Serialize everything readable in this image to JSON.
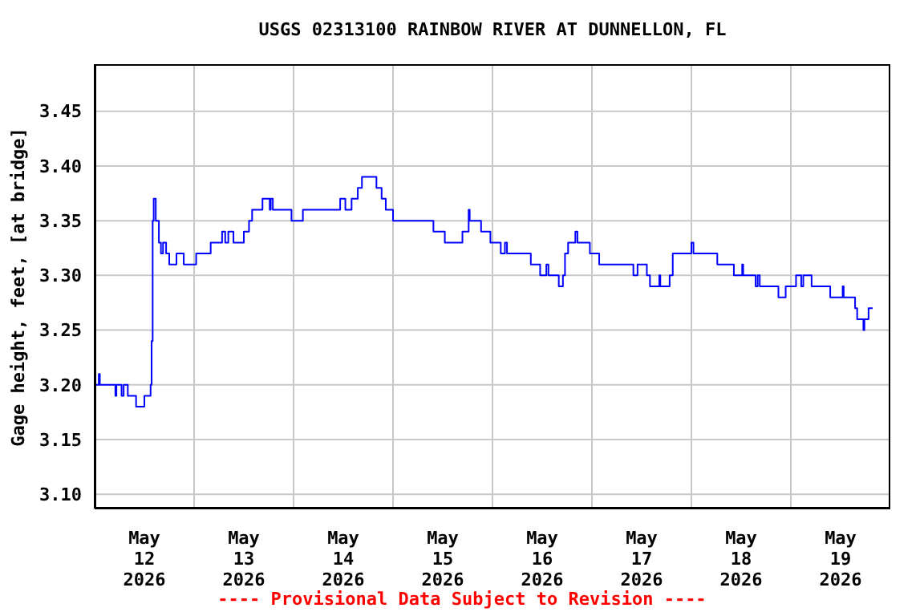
{
  "chart_data": {
    "type": "step",
    "title": "USGS 02313100 RAINBOW RIVER AT DUNNELLON, FL",
    "ylabel": "Gage height, feet, [at bridge]",
    "annotations": [
      "---- Provisional Data Subject to Revision ----"
    ],
    "x": [
      "2026-05-12T00:00",
      "2026-05-12T01:00",
      "2026-05-12T01:15",
      "2026-05-12T05:00",
      "2026-05-12T05:15",
      "2026-05-12T06:30",
      "2026-05-12T07:00",
      "2026-05-12T08:00",
      "2026-05-12T10:00",
      "2026-05-12T12:00",
      "2026-05-12T13:30",
      "2026-05-12T13:45",
      "2026-05-12T14:00",
      "2026-05-12T14:15",
      "2026-05-12T14:45",
      "2026-05-12T15:30",
      "2026-05-12T16:00",
      "2026-05-12T16:30",
      "2026-05-12T17:15",
      "2026-05-12T18:00",
      "2026-05-12T19:45",
      "2026-05-12T21:30",
      "2026-05-13T00:30",
      "2026-05-13T04:00",
      "2026-05-13T06:45",
      "2026-05-13T07:30",
      "2026-05-13T08:15",
      "2026-05-13T09:30",
      "2026-05-13T12:00",
      "2026-05-13T13:15",
      "2026-05-13T14:00",
      "2026-05-13T16:30",
      "2026-05-13T18:15",
      "2026-05-13T18:30",
      "2026-05-13T19:00",
      "2026-05-13T23:30",
      "2026-05-14T02:15",
      "2026-05-14T11:15",
      "2026-05-14T12:30",
      "2026-05-14T14:00",
      "2026-05-14T15:30",
      "2026-05-14T16:30",
      "2026-05-14T20:00",
      "2026-05-14T21:15",
      "2026-05-14T22:15",
      "2026-05-15T00:00",
      "2026-05-15T09:45",
      "2026-05-15T12:30",
      "2026-05-15T16:45",
      "2026-05-15T18:15",
      "2026-05-15T18:30",
      "2026-05-15T21:15",
      "2026-05-15T23:30",
      "2026-05-16T02:00",
      "2026-05-16T03:00",
      "2026-05-16T03:30",
      "2026-05-16T09:15",
      "2026-05-16T11:30",
      "2026-05-16T13:00",
      "2026-05-16T13:30",
      "2026-05-16T16:00",
      "2026-05-16T17:00",
      "2026-05-16T17:30",
      "2026-05-16T18:15",
      "2026-05-16T20:00",
      "2026-05-16T20:30",
      "2026-05-16T23:30",
      "2026-05-17T01:45",
      "2026-05-17T10:00",
      "2026-05-17T11:00",
      "2026-05-17T13:15",
      "2026-05-17T14:00",
      "2026-05-17T16:15",
      "2026-05-17T16:30",
      "2026-05-17T18:45",
      "2026-05-17T19:30",
      "2026-05-18T00:00",
      "2026-05-18T00:30",
      "2026-05-18T06:15",
      "2026-05-18T10:15",
      "2026-05-18T12:15",
      "2026-05-18T12:30",
      "2026-05-18T15:30",
      "2026-05-18T16:00",
      "2026-05-18T16:30",
      "2026-05-18T21:00",
      "2026-05-18T22:45",
      "2026-05-19T01:15",
      "2026-05-19T02:30",
      "2026-05-19T03:00",
      "2026-05-19T05:00",
      "2026-05-19T09:30",
      "2026-05-19T12:30",
      "2026-05-19T12:45",
      "2026-05-19T15:30",
      "2026-05-19T16:00",
      "2026-05-19T17:30",
      "2026-05-19T17:45",
      "2026-05-19T18:45",
      "2026-05-19T19:45"
    ],
    "series": [
      {
        "color": "#0000ff",
        "values": [
          3.2,
          3.21,
          3.2,
          3.19,
          3.2,
          3.19,
          3.2,
          3.19,
          3.18,
          3.19,
          3.2,
          3.24,
          3.35,
          3.37,
          3.35,
          3.33,
          3.32,
          3.33,
          3.32,
          3.31,
          3.32,
          3.31,
          3.32,
          3.33,
          3.34,
          3.33,
          3.34,
          3.33,
          3.34,
          3.35,
          3.36,
          3.37,
          3.36,
          3.37,
          3.36,
          3.35,
          3.36,
          3.37,
          3.36,
          3.37,
          3.38,
          3.39,
          3.38,
          3.37,
          3.36,
          3.35,
          3.34,
          3.33,
          3.34,
          3.36,
          3.35,
          3.34,
          3.33,
          3.32,
          3.33,
          3.32,
          3.31,
          3.3,
          3.31,
          3.3,
          3.29,
          3.3,
          3.32,
          3.33,
          3.34,
          3.33,
          3.32,
          3.31,
          3.3,
          3.31,
          3.3,
          3.29,
          3.3,
          3.29,
          3.3,
          3.32,
          3.33,
          3.32,
          3.31,
          3.3,
          3.31,
          3.3,
          3.29,
          3.3,
          3.29,
          3.28,
          3.29,
          3.3,
          3.29,
          3.3,
          3.29,
          3.28,
          3.29,
          3.28,
          3.27,
          3.26,
          3.25,
          3.26,
          3.27,
          3.27
        ]
      }
    ],
    "xlim": [
      "2026-05-12T00:00",
      "2026-05-20T00:00"
    ],
    "xticks": [
      {
        "value": "2026-05-12T12:00",
        "label": "May 12 2026"
      },
      {
        "value": "2026-05-13T12:00",
        "label": "May 13 2026"
      },
      {
        "value": "2026-05-14T12:00",
        "label": "May 14 2026"
      },
      {
        "value": "2026-05-15T12:00",
        "label": "May 15 2026"
      },
      {
        "value": "2026-05-16T12:00",
        "label": "May 16 2026"
      },
      {
        "value": "2026-05-17T12:00",
        "label": "May 17 2026"
      },
      {
        "value": "2026-05-18T12:00",
        "label": "May 18 2026"
      },
      {
        "value": "2026-05-19T12:00",
        "label": "May 19 2026"
      },
      {
        "value": "2026-05-13T00:00",
        "label": null
      },
      {
        "value": "2026-05-14T00:00",
        "label": null
      },
      {
        "value": "2026-05-15T00:00",
        "label": null
      },
      {
        "value": "2026-05-16T00:00",
        "label": null
      },
      {
        "value": "2026-05-17T00:00",
        "label": null
      },
      {
        "value": "2026-05-18T00:00",
        "label": null
      },
      {
        "value": "2026-05-19T00:00",
        "label": null
      }
    ],
    "ylim": [
      3.087,
      3.493
    ],
    "yticks": [
      {
        "value": 3.1,
        "label": "3.10"
      },
      {
        "value": 3.15,
        "label": "3.15"
      },
      {
        "value": 3.2,
        "label": "3.20"
      },
      {
        "value": 3.25,
        "label": "3.25"
      },
      {
        "value": 3.3,
        "label": "3.30"
      },
      {
        "value": 3.35,
        "label": "3.35"
      },
      {
        "value": 3.4,
        "label": "3.40"
      },
      {
        "value": 3.45,
        "label": "3.45"
      }
    ],
    "grid": true,
    "legend": false,
    "marker": "none",
    "line_style": "solid"
  }
}
